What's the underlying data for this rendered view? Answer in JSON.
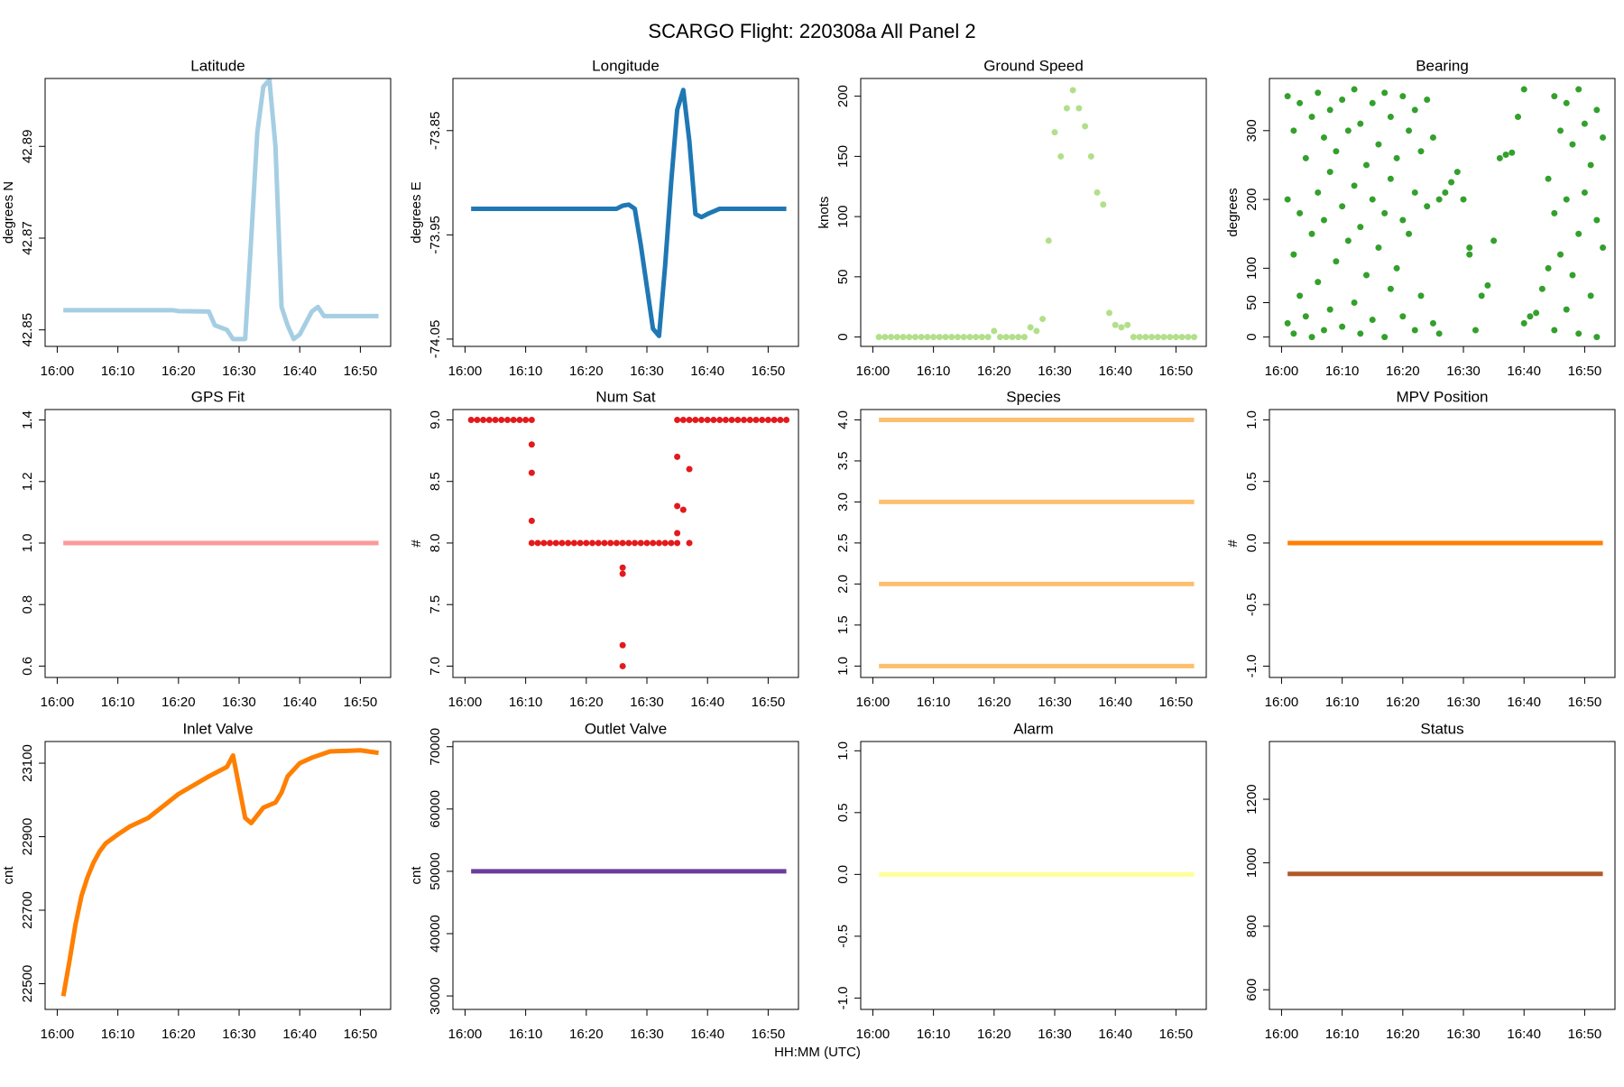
{
  "title": "SCARGO Flight: 220308a   All  Panel 2",
  "xlabel": "HH:MM (UTC)",
  "chart_data": [
    {
      "type": "line",
      "title": "Latitude",
      "ylabel": "degrees N",
      "color": "#a6cee3",
      "x": [
        "16:01",
        "16:10",
        "16:19",
        "16:20",
        "16:25",
        "16:26",
        "16:28",
        "16:29",
        "16:31",
        "16:32",
        "16:33",
        "16:34",
        "16:35",
        "16:36",
        "16:37",
        "16:38",
        "16:39",
        "16:40",
        "16:42",
        "16:43",
        "16:44",
        "16:53"
      ],
      "values": [
        42.8543,
        42.8543,
        42.8543,
        42.8541,
        42.854,
        42.851,
        42.85,
        42.848,
        42.848,
        42.87,
        42.893,
        42.903,
        42.9045,
        42.89,
        42.855,
        42.851,
        42.848,
        42.849,
        42.854,
        42.855,
        42.853,
        42.853
      ],
      "xlim": [
        "15:58",
        "16:55"
      ],
      "xticks": [
        "16:00",
        "16:10",
        "16:20",
        "16:30",
        "16:40",
        "16:50"
      ],
      "ylim": [
        42.8464,
        42.9048
      ],
      "yticks": [
        42.85,
        42.87,
        42.89
      ]
    },
    {
      "type": "line",
      "title": "Longitude",
      "ylabel": "degrees E",
      "color": "#1f78b4",
      "x": [
        "16:01",
        "16:25",
        "16:26",
        "16:27",
        "16:28",
        "16:29",
        "16:30",
        "16:31",
        "16:32",
        "16:33",
        "16:34",
        "16:35",
        "16:36",
        "16:37",
        "16:38",
        "16:39",
        "16:40",
        "16:42",
        "16:53"
      ],
      "values": [
        -73.925,
        -73.925,
        -73.922,
        -73.921,
        -73.925,
        -73.96,
        -74.0,
        -74.04,
        -74.047,
        -73.98,
        -73.9,
        -73.83,
        -73.811,
        -73.86,
        -73.93,
        -73.933,
        -73.93,
        -73.925,
        -73.925
      ],
      "xlim": [
        "15:58",
        "16:55"
      ],
      "xticks": [
        "16:00",
        "16:10",
        "16:20",
        "16:30",
        "16:40",
        "16:50"
      ],
      "ylim": [
        -74.057,
        -73.8
      ],
      "yticks": [
        -74.05,
        -73.95,
        -73.85
      ]
    },
    {
      "type": "scatter",
      "title": "Ground Speed",
      "ylabel": "knots",
      "color": "#b2df8a",
      "x": [
        "16:01",
        "16:02",
        "16:03",
        "16:04",
        "16:05",
        "16:06",
        "16:07",
        "16:08",
        "16:09",
        "16:10",
        "16:11",
        "16:12",
        "16:13",
        "16:14",
        "16:15",
        "16:16",
        "16:17",
        "16:18",
        "16:19",
        "16:20",
        "16:21",
        "16:22",
        "16:23",
        "16:24",
        "16:25",
        "16:26",
        "16:27",
        "16:28",
        "16:29",
        "16:30",
        "16:31",
        "16:32",
        "16:33",
        "16:34",
        "16:35",
        "16:36",
        "16:37",
        "16:38",
        "16:39",
        "16:40",
        "16:41",
        "16:42",
        "16:43",
        "16:44",
        "16:45",
        "16:46",
        "16:47",
        "16:48",
        "16:49",
        "16:50",
        "16:51",
        "16:52",
        "16:53"
      ],
      "values": [
        0,
        0,
        0,
        0,
        0,
        0,
        0,
        0,
        0,
        0,
        0,
        0,
        0,
        0,
        0,
        0,
        0,
        0,
        0,
        5,
        0,
        0,
        0,
        0,
        0,
        8,
        5,
        15,
        80,
        170,
        150,
        190,
        205,
        190,
        175,
        150,
        120,
        110,
        20,
        10,
        8,
        10,
        0,
        0,
        0,
        0,
        0,
        0,
        0,
        0,
        0,
        0,
        0
      ],
      "xlim": [
        "15:58",
        "16:55"
      ],
      "xticks": [
        "16:00",
        "16:10",
        "16:20",
        "16:30",
        "16:40",
        "16:50"
      ],
      "ylim": [
        -7.8,
        214.7
      ],
      "yticks": [
        0,
        50,
        100,
        150,
        200
      ]
    },
    {
      "type": "scatter",
      "title": "Bearing",
      "ylabel": "degrees",
      "color": "#33a02c",
      "x": [
        "16:01",
        "16:01",
        "16:01",
        "16:02",
        "16:02",
        "16:02",
        "16:03",
        "16:03",
        "16:03",
        "16:04",
        "16:04",
        "16:05",
        "16:05",
        "16:05",
        "16:06",
        "16:06",
        "16:06",
        "16:07",
        "16:07",
        "16:07",
        "16:08",
        "16:08",
        "16:08",
        "16:09",
        "16:09",
        "16:10",
        "16:10",
        "16:10",
        "16:11",
        "16:11",
        "16:12",
        "16:12",
        "16:12",
        "16:13",
        "16:13",
        "16:13",
        "16:14",
        "16:14",
        "16:15",
        "16:15",
        "16:15",
        "16:16",
        "16:16",
        "16:17",
        "16:17",
        "16:17",
        "16:18",
        "16:18",
        "16:18",
        "16:19",
        "16:19",
        "16:20",
        "16:20",
        "16:20",
        "16:21",
        "16:21",
        "16:22",
        "16:22",
        "16:22",
        "16:23",
        "16:23",
        "16:24",
        "16:24",
        "16:25",
        "16:25",
        "16:26",
        "16:26",
        "16:27",
        "16:28",
        "16:29",
        "16:30",
        "16:31",
        "16:31",
        "16:32",
        "16:33",
        "16:34",
        "16:35",
        "16:36",
        "16:37",
        "16:38",
        "16:39",
        "16:40",
        "16:40",
        "16:41",
        "16:42",
        "16:43",
        "16:44",
        "16:44",
        "16:45",
        "16:45",
        "16:45",
        "16:46",
        "16:46",
        "16:47",
        "16:47",
        "16:47",
        "16:48",
        "16:48",
        "16:49",
        "16:49",
        "16:49",
        "16:50",
        "16:50",
        "16:51",
        "16:51",
        "16:52",
        "16:52",
        "16:52",
        "16:53",
        "16:53"
      ],
      "values": [
        350,
        200,
        20,
        300,
        120,
        5,
        340,
        180,
        60,
        260,
        30,
        320,
        150,
        0,
        355,
        210,
        80,
        290,
        170,
        10,
        330,
        240,
        40,
        270,
        110,
        345,
        190,
        15,
        300,
        140,
        360,
        220,
        50,
        310,
        160,
        5,
        250,
        90,
        340,
        200,
        25,
        280,
        130,
        355,
        180,
        0,
        320,
        230,
        70,
        260,
        100,
        350,
        170,
        30,
        300,
        150,
        330,
        210,
        10,
        270,
        60,
        345,
        190,
        290,
        20,
        200,
        5,
        210,
        225,
        240,
        200,
        130,
        120,
        10,
        60,
        75,
        140,
        260,
        265,
        268,
        320,
        360,
        20,
        30,
        35,
        70,
        100,
        230,
        350,
        180,
        10,
        300,
        120,
        340,
        200,
        40,
        280,
        90,
        360,
        150,
        5,
        310,
        210,
        250,
        60,
        330,
        170,
        0,
        290,
        130
      ],
      "xlim": [
        "15:58",
        "16:55"
      ],
      "xticks": [
        "16:00",
        "16:10",
        "16:20",
        "16:30",
        "16:40",
        "16:50"
      ],
      "ylim": [
        -13.6,
        375.8
      ],
      "yticks": [
        0,
        50,
        100,
        200,
        300
      ]
    },
    {
      "type": "line",
      "title": "GPS Fit",
      "color": "#fb9a99",
      "x": [
        "16:01",
        "16:53"
      ],
      "values": [
        1,
        1
      ],
      "xlim": [
        "15:58",
        "16:55"
      ],
      "xticks": [
        "16:00",
        "16:10",
        "16:20",
        "16:30",
        "16:40",
        "16:50"
      ],
      "ylim": [
        0.563,
        1.434
      ],
      "yticks": [
        0.6,
        0.8,
        {
          "value": 1,
          "label": "1.0"
        },
        1.2,
        1.4
      ]
    },
    {
      "type": "scatter",
      "title": "Num Sat",
      "ylabel": "#",
      "color": "#e31a1c",
      "x": [
        "16:01",
        "16:02",
        "16:03",
        "16:04",
        "16:05",
        "16:06",
        "16:07",
        "16:08",
        "16:09",
        "16:10",
        "16:11",
        "16:11",
        "16:11",
        "16:11",
        "16:11",
        "16:12",
        "16:13",
        "16:14",
        "16:15",
        "16:16",
        "16:17",
        "16:18",
        "16:19",
        "16:20",
        "16:21",
        "16:22",
        "16:23",
        "16:24",
        "16:25",
        "16:26",
        "16:27",
        "16:28",
        "16:29",
        "16:30",
        "16:31",
        "16:32",
        "16:33",
        "16:34",
        "16:35",
        "16:26",
        "16:26",
        "16:26",
        "16:26",
        "16:35",
        "16:35",
        "16:35",
        "16:35",
        "16:36",
        "16:37",
        "16:38",
        "16:39",
        "16:40",
        "16:41",
        "16:42",
        "16:43",
        "16:44",
        "16:45",
        "16:46",
        "16:47",
        "16:48",
        "16:49",
        "16:50",
        "16:51",
        "16:52",
        "16:53",
        "16:36",
        "16:37",
        "16:37"
      ],
      "values": [
        9,
        9,
        9,
        9,
        9,
        9,
        9,
        9,
        9,
        9,
        9,
        8.8,
        8.57,
        8.18,
        8,
        8,
        8,
        8,
        8,
        8,
        8,
        8,
        8,
        8,
        8,
        8,
        8,
        8,
        8,
        8,
        8,
        8,
        8,
        8,
        8,
        8,
        8,
        8,
        8,
        7.8,
        7.75,
        7.17,
        7,
        8.7,
        8.3,
        8.08,
        9,
        9,
        9,
        9,
        9,
        9,
        9,
        9,
        9,
        9,
        9,
        9,
        9,
        9,
        9,
        9,
        9,
        9,
        9,
        8.27,
        8.6,
        8
      ],
      "xlim": [
        "15:58",
        "16:55"
      ],
      "xticks": [
        "16:00",
        "16:10",
        "16:20",
        "16:30",
        "16:40",
        "16:50"
      ],
      "ylim": [
        6.908,
        9.084
      ],
      "yticks": [
        {
          "value": 7,
          "label": "7.0"
        },
        7.5,
        {
          "value": 8,
          "label": "8.0"
        },
        8.5,
        {
          "value": 9,
          "label": "9.0"
        }
      ]
    },
    {
      "type": "line",
      "title": "Species",
      "x": [
        "16:01",
        "16:53"
      ],
      "series": [
        {
          "color": "#fdbf6f",
          "values": [
            1,
            1
          ]
        },
        {
          "color": "#fdbf6f",
          "values": [
            2,
            2
          ]
        },
        {
          "color": "#fdbf6f",
          "values": [
            3,
            3
          ]
        },
        {
          "color": "#fdbf6f",
          "values": [
            4,
            4
          ]
        }
      ],
      "xlim": [
        "15:58",
        "16:55"
      ],
      "xticks": [
        "16:00",
        "16:10",
        "16:20",
        "16:30",
        "16:40",
        "16:50"
      ],
      "ylim": [
        0.861,
        4.126
      ],
      "yticks": [
        {
          "value": 1,
          "label": "1.0"
        },
        1.5,
        {
          "value": 2,
          "label": "2.0"
        },
        2.5,
        {
          "value": 3,
          "label": "3.0"
        },
        3.5,
        {
          "value": 4,
          "label": "4.0"
        }
      ]
    },
    {
      "type": "line",
      "title": "MPV Position",
      "ylabel": "#",
      "color": "#ff7f00",
      "x": [
        "16:01",
        "16:53"
      ],
      "values": [
        0,
        0
      ],
      "xlim": [
        "15:58",
        "16:55"
      ],
      "xticks": [
        "16:00",
        "16:10",
        "16:20",
        "16:30",
        "16:40",
        "16:50"
      ],
      "ylim": [
        -1.092,
        1.084
      ],
      "yticks": [
        {
          "value": -1,
          "label": "-1.0"
        },
        -0.5,
        {
          "value": 0,
          "label": "0.0"
        },
        0.5,
        {
          "value": 1,
          "label": "1.0"
        }
      ]
    },
    {
      "type": "line",
      "title": "Inlet Valve",
      "ylabel": "cnt",
      "color": "#ff7f00",
      "x": [
        "16:01",
        "16:02",
        "16:03",
        "16:04",
        "16:05",
        "16:06",
        "16:07",
        "16:08",
        "16:10",
        "16:12",
        "16:15",
        "16:18",
        "16:20",
        "16:25",
        "16:28",
        "16:29",
        "16:31",
        "16:32",
        "16:34",
        "16:36",
        "16:37",
        "16:38",
        "16:40",
        "16:42",
        "16:45",
        "16:50",
        "16:53"
      ],
      "values": [
        22466,
        22560,
        22660,
        22739,
        22790,
        22830,
        22860,
        22882,
        22906,
        22928,
        22951,
        22990,
        23016,
        23064,
        23090,
        23121,
        22951,
        22937,
        22979,
        22993,
        23020,
        23064,
        23100,
        23115,
        23132,
        23135,
        23128
      ],
      "xlim": [
        "15:58",
        "16:55"
      ],
      "xticks": [
        "16:00",
        "16:10",
        "16:20",
        "16:30",
        "16:40",
        "16:50"
      ],
      "ylim": [
        22430,
        23159
      ],
      "yticks": [
        22500,
        22700,
        22900,
        23100
      ]
    },
    {
      "type": "line",
      "title": "Outlet Valve",
      "ylabel": "cnt",
      "color": "#6a3d9a",
      "x": [
        "16:01",
        "16:53"
      ],
      "values": [
        50000,
        50000
      ],
      "xlim": [
        "15:58",
        "16:55"
      ],
      "xticks": [
        "16:00",
        "16:10",
        "16:20",
        "16:30",
        "16:40",
        "16:50"
      ],
      "ylim": [
        27840,
        70830
      ],
      "yticks": [
        30000,
        40000,
        50000,
        60000,
        70000
      ]
    },
    {
      "type": "line",
      "title": "Alarm",
      "color": "#ffff99",
      "x": [
        "16:01",
        "16:53"
      ],
      "values": [
        0,
        0
      ],
      "xlim": [
        "15:58",
        "16:55"
      ],
      "xticks": [
        "16:00",
        "16:10",
        "16:20",
        "16:30",
        "16:40",
        "16:50"
      ],
      "ylim": [
        -1.092,
        1.075
      ],
      "yticks": [
        {
          "value": -1,
          "label": "-1.0"
        },
        -0.5,
        {
          "value": 0,
          "label": "0.0"
        },
        0.5,
        {
          "value": 1,
          "label": "1.0"
        }
      ]
    },
    {
      "type": "line",
      "title": "Status",
      "color": "#b15928",
      "x": [
        "16:01",
        "16:53"
      ],
      "values": [
        965,
        965
      ],
      "xlim": [
        "15:58",
        "16:55"
      ],
      "xticks": [
        "16:00",
        "16:10",
        "16:20",
        "16:30",
        "16:40",
        "16:50"
      ],
      "ylim": [
        538,
        1382
      ],
      "yticks": [
        600,
        800,
        1000,
        1200
      ]
    }
  ]
}
